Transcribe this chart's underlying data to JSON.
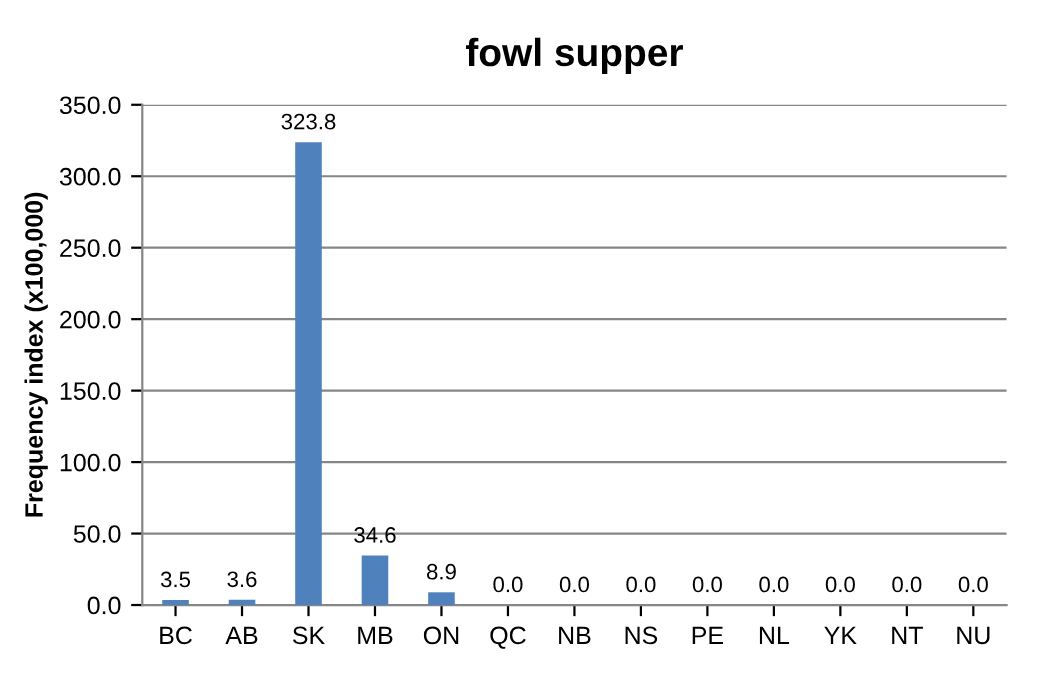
{
  "chart_data": {
    "type": "bar",
    "title": "fowl supper",
    "ylabel": "Frequency index (x100,000)",
    "categories": [
      "BC",
      "AB",
      "SK",
      "MB",
      "ON",
      "QC",
      "NB",
      "NS",
      "PE",
      "NL",
      "YK",
      "NT",
      "NU"
    ],
    "values": [
      3.5,
      3.6,
      323.8,
      34.6,
      8.9,
      0,
      0,
      0,
      0,
      0,
      0,
      0,
      0
    ],
    "value_labels": [
      "3.5",
      "3.6",
      "323.8",
      "34.6",
      "8.9",
      "0.0",
      "0.0",
      "0.0",
      "0.0",
      "0.0",
      "0.0",
      "0.0",
      "0.0"
    ],
    "color": "#4f81bd",
    "ylim": [
      0,
      350
    ],
    "yticks": [
      {
        "value": 0,
        "label": "0.0"
      },
      {
        "value": 50,
        "label": "50.0"
      },
      {
        "value": 100,
        "label": "100.0"
      },
      {
        "value": 150,
        "label": "150.0"
      },
      {
        "value": 200,
        "label": "200.0"
      },
      {
        "value": 250,
        "label": "250.0"
      },
      {
        "value": 300,
        "label": "300.0"
      },
      {
        "value": 350,
        "label": "350.0"
      }
    ],
    "grid": "y",
    "legend": false
  }
}
